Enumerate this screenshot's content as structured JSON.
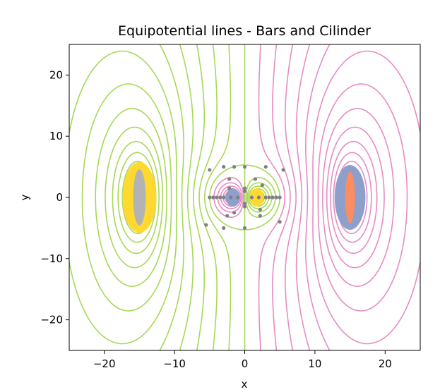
{
  "chart_data": {
    "type": "contour",
    "title": "Equipotential lines - Bars and Cilinder",
    "xlabel": "x",
    "ylabel": "y",
    "xlim": [
      -25,
      25
    ],
    "ylim": [
      -25,
      25
    ],
    "xticks": [
      -20,
      -10,
      0,
      10,
      20
    ],
    "yticks": [
      -20,
      -10,
      0,
      10,
      20
    ],
    "xtick_labels": [
      "−20",
      "−10",
      "0",
      "10",
      "20"
    ],
    "ytick_labels": [
      "−20",
      "−10",
      "0",
      "10",
      "20"
    ],
    "grid": false,
    "legend": "none",
    "colors": {
      "positive": "#a6d854",
      "negative": "#e78ac3",
      "fill_yellow": "#ffd92f",
      "fill_grey": "#b3b3b3",
      "fill_blue": "#8da0cb",
      "fill_orange": "#fc8d62",
      "point": "#808080"
    },
    "sources": [
      {
        "name": "left bar",
        "x": -15,
        "y": 0,
        "sign": "+"
      },
      {
        "name": "right bar",
        "x": 15,
        "y": 0,
        "sign": "-"
      }
    ],
    "cylinder": {
      "x": 0,
      "y": 0,
      "radius": 5
    },
    "cylinder_points": [
      [
        -5,
        4.5
      ],
      [
        -3,
        5
      ],
      [
        -1.5,
        5
      ],
      [
        0,
        5
      ],
      [
        3,
        5
      ],
      [
        5.5,
        4.5
      ],
      [
        -5,
        0
      ],
      [
        -4.5,
        0
      ],
      [
        -4,
        0
      ],
      [
        -3.5,
        0
      ],
      [
        -3,
        0
      ],
      [
        -2,
        0
      ],
      [
        -1,
        0
      ],
      [
        1,
        0
      ],
      [
        2,
        0
      ],
      [
        3,
        0
      ],
      [
        3.5,
        0
      ],
      [
        4,
        0
      ],
      [
        4.5,
        0
      ],
      [
        5,
        0
      ],
      [
        -2.2,
        3
      ],
      [
        -2.2,
        1.5
      ],
      [
        -1.5,
        -2.5
      ],
      [
        -2.5,
        -3
      ],
      [
        -5.5,
        -4.5
      ],
      [
        0,
        1
      ],
      [
        0,
        1.5
      ],
      [
        0,
        -1
      ],
      [
        0,
        -1.5
      ],
      [
        0,
        -5
      ],
      [
        -3,
        -5
      ],
      [
        1.5,
        3
      ],
      [
        2.5,
        2
      ],
      [
        2.2,
        -2
      ],
      [
        2.2,
        -3
      ],
      [
        5,
        -4
      ]
    ]
  }
}
